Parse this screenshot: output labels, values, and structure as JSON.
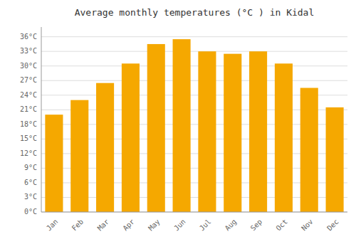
{
  "chart_data": {
    "type": "bar",
    "title": "Average monthly temperatures (°C ) in Kidal",
    "categories": [
      "Jan",
      "Feb",
      "Mar",
      "Apr",
      "May",
      "Jun",
      "Jul",
      "Aug",
      "Sep",
      "Oct",
      "Nov",
      "Dec"
    ],
    "values": [
      20,
      23,
      26.5,
      30.5,
      34.5,
      35.5,
      33,
      32.5,
      33,
      30.5,
      25.5,
      21.5
    ],
    "color": "#F5A800",
    "ylim": [
      0,
      38
    ],
    "yticks": [
      {
        "value": 0,
        "label": "0°C"
      },
      {
        "value": 3,
        "label": "3°C"
      },
      {
        "value": 6,
        "label": "6°C"
      },
      {
        "value": 9,
        "label": "9°C"
      },
      {
        "value": 12,
        "label": "12°C"
      },
      {
        "value": 15,
        "label": "15°C"
      },
      {
        "value": 18,
        "label": "18°C"
      },
      {
        "value": 21,
        "label": "21°C"
      },
      {
        "value": 24,
        "label": "24°C"
      },
      {
        "value": 27,
        "label": "27°C"
      },
      {
        "value": 30,
        "label": "30°C"
      },
      {
        "value": 33,
        "label": "33°C"
      },
      {
        "value": 36,
        "label": "36°C"
      }
    ],
    "grid": true
  }
}
